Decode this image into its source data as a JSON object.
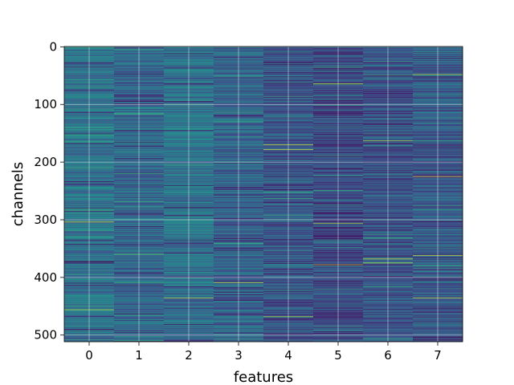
{
  "chart_data": {
    "type": "heatmap",
    "title": "",
    "xlabel": "features",
    "ylabel": "channels",
    "x_ticks": [
      "0",
      "1",
      "2",
      "3",
      "4",
      "5",
      "6",
      "7"
    ],
    "y_ticks": [
      "0",
      "100",
      "200",
      "300",
      "400",
      "500"
    ],
    "y_tick_values": [
      0,
      100,
      200,
      300,
      400,
      500
    ],
    "n_features": 8,
    "n_channels": 512,
    "ylim": [
      511.5,
      -0.5
    ],
    "xlim": [
      -0.5,
      7.5
    ],
    "colormap": "viridis",
    "colormap_stops": [
      "#440154",
      "#3b528b",
      "#21918c",
      "#5ec962",
      "#fde725"
    ],
    "grid": true,
    "grid_color": "#ffffff",
    "feature_base_levels": [
      0.38,
      0.33,
      0.36,
      0.31,
      0.27,
      0.22,
      0.26,
      0.27
    ],
    "highlighted_cells": [
      {
        "feature": 0,
        "channel": 304,
        "value": 0.95
      },
      {
        "feature": 0,
        "channel": 456,
        "value": 0.9
      },
      {
        "feature": 1,
        "channel": 360,
        "value": 0.75
      },
      {
        "feature": 2,
        "channel": 436,
        "value": 0.9
      },
      {
        "feature": 3,
        "channel": 409,
        "value": 0.9
      },
      {
        "feature": 4,
        "channel": 170,
        "value": 0.92
      },
      {
        "feature": 4,
        "channel": 178,
        "value": 0.95
      },
      {
        "feature": 4,
        "channel": 468,
        "value": 0.85
      },
      {
        "feature": 5,
        "channel": 64,
        "value": 0.9
      },
      {
        "feature": 5,
        "channel": 306,
        "value": 0.88
      },
      {
        "feature": 5,
        "channel": 378,
        "value": 0.9
      },
      {
        "feature": 6,
        "channel": 163,
        "value": 0.85
      },
      {
        "feature": 6,
        "channel": 368,
        "value": 0.95
      },
      {
        "feature": 6,
        "channel": 375,
        "value": 0.9
      },
      {
        "feature": 7,
        "channel": 48,
        "value": 0.9
      },
      {
        "feature": 7,
        "channel": 225,
        "value": 0.95
      },
      {
        "feature": 7,
        "channel": 362,
        "value": 0.9
      },
      {
        "feature": 7,
        "channel": 436,
        "value": 0.92
      }
    ]
  }
}
